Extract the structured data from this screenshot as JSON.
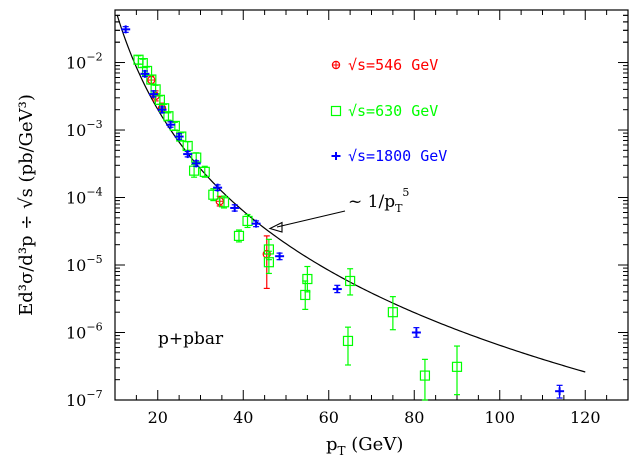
{
  "chart_data": {
    "type": "scatter",
    "title": "",
    "xlabel": {
      "base": "p",
      "sub": "T",
      "rest": " (GeV)"
    },
    "ylabel": "Ed³σ/d³p ÷ √s (pb/GeV³)",
    "xlim": [
      10,
      130
    ],
    "ylim": [
      1e-07,
      0.06
    ],
    "yscale": "log",
    "grid": false,
    "legend_position": "upper-middle",
    "x_ticks": [
      20,
      40,
      60,
      80,
      100,
      120
    ],
    "y_ticks": [
      {
        "value": 1e-07,
        "mantissa": "10",
        "exp": "−7"
      },
      {
        "value": 1e-06,
        "mantissa": "10",
        "exp": "−6"
      },
      {
        "value": 1e-05,
        "mantissa": "10",
        "exp": "−5"
      },
      {
        "value": 0.0001,
        "mantissa": "10",
        "exp": "−4"
      },
      {
        "value": 0.001,
        "mantissa": "10",
        "exp": "−3"
      },
      {
        "value": 0.01,
        "mantissa": "10",
        "exp": "−2"
      }
    ],
    "series": [
      {
        "name": "√s=546 GeV",
        "color": "#ff0000",
        "marker": "circle-cross",
        "points": [
          {
            "x": 18.5,
            "y": 0.0055,
            "lo": 0.0048,
            "hi": 0.0063
          },
          {
            "x": 19.5,
            "y": 0.0032,
            "lo": 0.0027,
            "hi": 0.0038
          },
          {
            "x": 21.0,
            "y": 0.0021,
            "lo": 0.0018,
            "hi": 0.0025
          },
          {
            "x": 34.5,
            "y": 8.8e-05,
            "lo": 7.5e-05,
            "hi": 0.000104
          },
          {
            "x": 45.5,
            "y": 1.45e-05,
            "lo": 4.5e-06,
            "hi": 2.7e-05
          }
        ]
      },
      {
        "name": "√s=630 GeV",
        "color": "#00ff00",
        "marker": "square",
        "points": [
          {
            "x": 15.5,
            "y": 0.011,
            "lo": 0.0095,
            "hi": 0.0126
          },
          {
            "x": 16.5,
            "y": 0.0098,
            "lo": 0.0085,
            "hi": 0.0112
          },
          {
            "x": 17.5,
            "y": 0.0075,
            "lo": 0.0065,
            "hi": 0.0086
          },
          {
            "x": 18.5,
            "y": 0.0056,
            "lo": 0.0048,
            "hi": 0.0065
          },
          {
            "x": 19.5,
            "y": 0.004,
            "lo": 0.0034,
            "hi": 0.0046
          },
          {
            "x": 20.5,
            "y": 0.0028,
            "lo": 0.0024,
            "hi": 0.0032
          },
          {
            "x": 21.5,
            "y": 0.0021,
            "lo": 0.0018,
            "hi": 0.0024
          },
          {
            "x": 22.5,
            "y": 0.0016,
            "lo": 0.0014,
            "hi": 0.0018
          },
          {
            "x": 24.0,
            "y": 0.00115,
            "lo": 0.001,
            "hi": 0.0013
          },
          {
            "x": 25.5,
            "y": 0.0008,
            "lo": 0.0007,
            "hi": 0.00091
          },
          {
            "x": 27.0,
            "y": 0.00058,
            "lo": 0.0005,
            "hi": 0.00067
          },
          {
            "x": 28.5,
            "y": 0.00025,
            "lo": 0.0002,
            "hi": 0.00031
          },
          {
            "x": 29.0,
            "y": 0.00039,
            "lo": 0.00033,
            "hi": 0.00046
          },
          {
            "x": 31.0,
            "y": 0.00024,
            "lo": 0.0002,
            "hi": 0.00029
          },
          {
            "x": 33.0,
            "y": 0.00011,
            "lo": 9e-05,
            "hi": 0.000135
          },
          {
            "x": 35.5,
            "y": 8.5e-05,
            "lo": 7e-05,
            "hi": 0.000105
          },
          {
            "x": 39.0,
            "y": 2.7e-05,
            "lo": 2.2e-05,
            "hi": 3.3e-05
          },
          {
            "x": 41.0,
            "y": 4.5e-05,
            "lo": 3.6e-05,
            "hi": 5.6e-05
          },
          {
            "x": 46.0,
            "y": 1.1e-05,
            "lo": 7.5e-06,
            "hi": 1.6e-05
          },
          {
            "x": 46.0,
            "y": 1.7e-05,
            "lo": 1.2e-05,
            "hi": 2.4e-05
          },
          {
            "x": 54.5,
            "y": 3.6e-06,
            "lo": 2.2e-06,
            "hi": 5.8e-06
          },
          {
            "x": 55.0,
            "y": 6.2e-06,
            "lo": 4e-06,
            "hi": 9.5e-06
          },
          {
            "x": 64.5,
            "y": 7.5e-07,
            "lo": 3.3e-07,
            "hi": 1.2e-06
          },
          {
            "x": 65.0,
            "y": 5.8e-06,
            "lo": 3.6e-06,
            "hi": 8.8e-06
          },
          {
            "x": 75.0,
            "y": 2e-06,
            "lo": 1.1e-06,
            "hi": 3.4e-06
          },
          {
            "x": 82.5,
            "y": 2.3e-07,
            "lo": 1e-07,
            "hi": 4e-07
          },
          {
            "x": 90.0,
            "y": 3.1e-07,
            "lo": 1.2e-07,
            "hi": 6.3e-07
          }
        ]
      },
      {
        "name": "√s=1800 GeV",
        "color": "#0000ff",
        "marker": "star",
        "points": [
          {
            "x": 12.5,
            "y": 0.031,
            "lo": 0.028,
            "hi": 0.034
          },
          {
            "x": 17.0,
            "y": 0.0068,
            "lo": 0.0062,
            "hi": 0.0075
          },
          {
            "x": 19.0,
            "y": 0.0034,
            "lo": 0.0031,
            "hi": 0.0038
          },
          {
            "x": 21.0,
            "y": 0.002,
            "lo": 0.0018,
            "hi": 0.0022
          },
          {
            "x": 23.0,
            "y": 0.0012,
            "lo": 0.0011,
            "hi": 0.00132
          },
          {
            "x": 25.0,
            "y": 0.0008,
            "lo": 0.00073,
            "hi": 0.00088
          },
          {
            "x": 27.0,
            "y": 0.00044,
            "lo": 0.0004,
            "hi": 0.00048
          },
          {
            "x": 29.0,
            "y": 0.00032,
            "lo": 0.00029,
            "hi": 0.00035
          },
          {
            "x": 34.0,
            "y": 0.00014,
            "lo": 0.000127,
            "hi": 0.000154
          },
          {
            "x": 38.0,
            "y": 7e-05,
            "lo": 6.3e-05,
            "hi": 7.8e-05
          },
          {
            "x": 43.0,
            "y": 4.1e-05,
            "lo": 3.7e-05,
            "hi": 4.5e-05
          },
          {
            "x": 48.5,
            "y": 1.35e-05,
            "lo": 1.2e-05,
            "hi": 1.5e-05
          },
          {
            "x": 62.0,
            "y": 4.4e-06,
            "lo": 3.9e-06,
            "hi": 5e-06
          },
          {
            "x": 80.5,
            "y": 1e-06,
            "lo": 8.5e-07,
            "hi": 1.18e-06
          },
          {
            "x": 114.0,
            "y": 1.35e-07,
            "lo": 1.07e-07,
            "hi": 1.65e-07
          }
        ]
      }
    ],
    "fit_curve": {
      "label": "~ 1/pT^5",
      "x_range": [
        10,
        120
      ],
      "anchor": {
        "x": 120,
        "y": 2.6e-07
      },
      "power": 5
    },
    "annotations": [
      {
        "text_lead": "~ 1/p",
        "text_sub": "T",
        "text_sup": "5",
        "arrow_to": {
          "x": 42.5,
          "y": 3.8e-05
        }
      },
      {
        "text": "p+pbar"
      }
    ]
  }
}
